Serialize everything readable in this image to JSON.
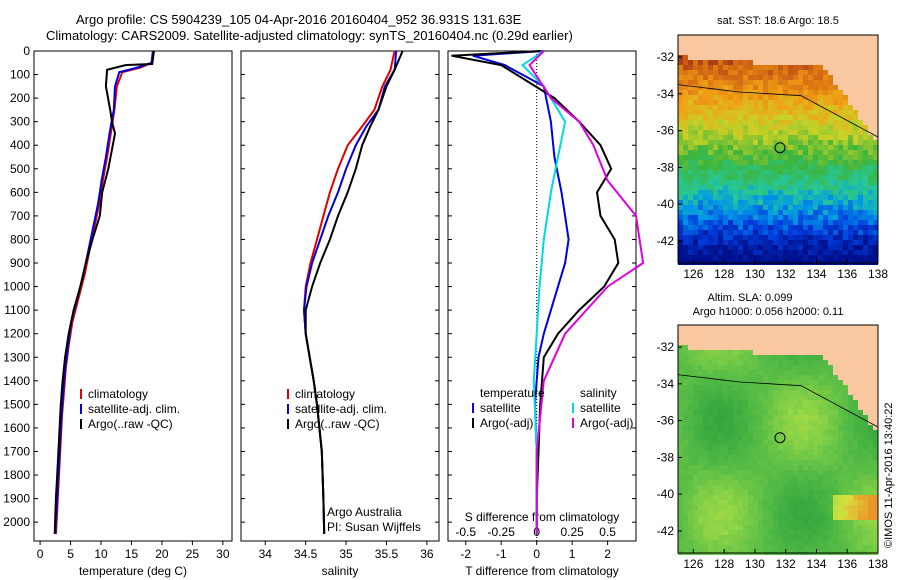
{
  "header": {
    "line1": "Argo profile: CS 5904239_105 04-Apr-2016 20160404_952 36.931S 131.63E",
    "line2": "Climatology: CARS2009. Satellite-adjusted climatology: synTS_20160404.nc (0.29d earlier)"
  },
  "colors": {
    "climatology": "#e00000",
    "satellite": "#0000e0",
    "argo": "#000000",
    "salinity_sat": "#00d8e8",
    "salinity_argo": "#e000e0"
  },
  "chart_data": [
    {
      "type": "line",
      "id": "temperature",
      "xlabel": "temperature (deg C)",
      "ylabel": "",
      "xlim": [
        -1,
        31.5
      ],
      "ylim": [
        2080,
        0
      ],
      "xticks": [
        0,
        5,
        10,
        15,
        20,
        25,
        30
      ],
      "yticks": [
        0,
        100,
        200,
        300,
        400,
        500,
        600,
        700,
        800,
        900,
        1000,
        1100,
        1200,
        1300,
        1400,
        1500,
        1600,
        1700,
        1800,
        1900,
        2000
      ],
      "legend": [
        "climatology",
        "satellite-adj. clim.",
        "Argo(..raw -QC)"
      ],
      "series": [
        {
          "name": "climatology",
          "color": "red",
          "x": [
            18.6,
            18.3,
            16.5,
            13.5,
            12.6,
            12.2,
            11.6,
            11.0,
            10.3,
            9.7,
            8.9,
            8.1,
            7.3,
            6.3,
            5.3,
            4.7,
            4.2,
            3.9,
            3.6,
            3.4,
            3.2,
            3.0,
            2.8,
            2.6
          ],
          "y": [
            0,
            50,
            70,
            90,
            150,
            250,
            350,
            450,
            550,
            650,
            750,
            850,
            950,
            1050,
            1150,
            1250,
            1350,
            1450,
            1550,
            1650,
            1750,
            1850,
            1950,
            2050
          ]
        },
        {
          "name": "satellite-adj. clim.",
          "color": "blue",
          "x": [
            18.5,
            18.3,
            16.0,
            13.0,
            12.3,
            12.1,
            11.4,
            10.8,
            10.1,
            9.5,
            8.7,
            7.9,
            7.1,
            6.1,
            5.1,
            4.6,
            4.1,
            3.8,
            3.5,
            3.3,
            3.1,
            2.9,
            2.7,
            2.5
          ],
          "y": [
            0,
            50,
            70,
            90,
            150,
            250,
            350,
            450,
            550,
            650,
            750,
            850,
            950,
            1050,
            1150,
            1250,
            1350,
            1450,
            1550,
            1650,
            1750,
            1850,
            1950,
            2050
          ]
        },
        {
          "name": "Argo(..raw -QC)",
          "color": "black",
          "x": [
            18.7,
            18.4,
            14.0,
            11.0,
            10.8,
            11.5,
            11.8,
            12.3,
            11.2,
            10.2,
            9.8,
            8.6,
            7.5,
            6.6,
            5.5,
            4.7,
            4.1,
            3.7,
            3.4,
            3.2,
            3.0,
            2.8,
            2.6,
            2.4
          ],
          "y": [
            0,
            55,
            60,
            80,
            150,
            250,
            300,
            350,
            500,
            600,
            700,
            800,
            900,
            1000,
            1100,
            1200,
            1300,
            1400,
            1500,
            1600,
            1700,
            1800,
            1900,
            2050
          ]
        }
      ]
    },
    {
      "type": "line",
      "id": "salinity",
      "xlabel": "salinity",
      "xlim": [
        33.7,
        36.15
      ],
      "ylim": [
        2080,
        0
      ],
      "xticks": [
        34,
        34.5,
        35,
        35.5,
        36
      ],
      "legend": [
        "climatology",
        "satellite-adj. clim.",
        "Argo(..raw -QC)"
      ],
      "annotation": [
        "Argo Australia",
        "PI: Susan Wijffels"
      ],
      "series": [
        {
          "name": "climatology",
          "color": "red",
          "x": [
            35.6,
            35.55,
            35.45,
            35.35,
            35.2,
            35.02,
            34.9,
            34.8,
            34.72,
            34.64,
            34.56,
            34.5,
            34.48,
            34.5,
            34.55,
            34.6,
            34.64,
            34.67,
            34.7,
            34.72,
            34.73
          ],
          "y": [
            0,
            80,
            150,
            250,
            320,
            400,
            500,
            600,
            700,
            800,
            900,
            1000,
            1100,
            1200,
            1300,
            1400,
            1500,
            1600,
            1700,
            1900,
            2050
          ]
        },
        {
          "name": "satellite-adj. clim.",
          "color": "blue",
          "x": [
            35.62,
            35.6,
            35.48,
            35.4,
            35.25,
            35.12,
            35.0,
            34.9,
            34.78,
            34.68,
            34.58,
            34.51,
            34.48,
            34.5,
            34.55,
            34.6,
            34.64,
            34.67,
            34.7,
            34.72,
            34.73
          ],
          "y": [
            0,
            80,
            150,
            250,
            320,
            400,
            500,
            600,
            700,
            800,
            900,
            1000,
            1100,
            1200,
            1300,
            1400,
            1500,
            1600,
            1700,
            1900,
            2050
          ]
        },
        {
          "name": "Argo(..raw -QC)",
          "color": "black",
          "x": [
            35.7,
            35.6,
            35.5,
            35.4,
            35.3,
            35.2,
            35.12,
            35.02,
            34.9,
            34.8,
            34.68,
            34.58,
            34.5,
            34.5,
            34.55,
            34.6,
            34.64,
            34.67,
            34.7,
            34.72,
            34.73
          ],
          "y": [
            0,
            80,
            150,
            250,
            320,
            400,
            500,
            600,
            700,
            800,
            900,
            1000,
            1100,
            1200,
            1300,
            1400,
            1500,
            1600,
            1700,
            1900,
            2050
          ]
        }
      ]
    },
    {
      "type": "line",
      "id": "difference",
      "xlabel": "T difference from climatology",
      "xlabel2": "S difference from climatology",
      "xlim": [
        -2.5,
        2.8
      ],
      "xticks": [
        -2,
        -1,
        0,
        1,
        2
      ],
      "xticks2": [
        -0.5,
        -0.25,
        0,
        0.25,
        0.5
      ],
      "ylim": [
        2080,
        0
      ],
      "legend_titles": [
        "temperature",
        "salinity"
      ],
      "legend": [
        "satellite",
        "Argo(-adj)",
        "satellite",
        "Argo(-adj)"
      ],
      "series": [
        {
          "name": "temperature satellite",
          "color": "blue",
          "x": [
            0.2,
            -1.8,
            -0.9,
            0.2,
            0.4,
            0.5,
            0.7,
            0.8,
            0.9,
            0.8,
            0.6,
            0.4,
            0.2,
            0.05,
            0.0,
            -0.05,
            0.0,
            0.0,
            0.0
          ],
          "y": [
            0,
            20,
            60,
            150,
            300,
            450,
            600,
            700,
            800,
            900,
            1000,
            1100,
            1200,
            1300,
            1400,
            1500,
            1700,
            1900,
            2050
          ]
        },
        {
          "name": "temperature Argo(-adj)",
          "color": "black",
          "x": [
            0.1,
            -2.4,
            -1.0,
            0.5,
            1.2,
            1.8,
            2.1,
            1.7,
            1.8,
            2.2,
            2.3,
            1.9,
            1.2,
            0.6,
            0.2,
            0.1,
            0.05,
            0.0,
            0.0
          ],
          "y": [
            0,
            20,
            60,
            200,
            300,
            400,
            500,
            600,
            700,
            800,
            900,
            1000,
            1100,
            1200,
            1300,
            1500,
            1700,
            1900,
            2050
          ]
        },
        {
          "name": "salinity satellite",
          "color": "cyan",
          "x": [
            0.05,
            -0.1,
            0.05,
            0.2,
            0.15,
            0.1,
            0.05,
            0.02,
            0.0,
            -0.02,
            0.0,
            0.0
          ],
          "y": [
            0,
            60,
            150,
            300,
            450,
            600,
            800,
            1000,
            1200,
            1400,
            1700,
            2050
          ]
        },
        {
          "name": "salinity Argo(-adj)",
          "color": "magenta",
          "x": [
            0.05,
            -0.05,
            0.1,
            0.3,
            0.4,
            0.5,
            0.7,
            0.75,
            0.5,
            0.2,
            0.05,
            0.0,
            0.0
          ],
          "y": [
            0,
            60,
            200,
            300,
            400,
            550,
            700,
            900,
            1000,
            1200,
            1400,
            1700,
            2050
          ]
        }
      ]
    }
  ],
  "maps": [
    {
      "id": "sst-map",
      "title": "sat. SST: 18.6 Argo: 18.5",
      "xticks": [
        126,
        128,
        130,
        132,
        134,
        136,
        138
      ],
      "yticks": [
        -32,
        -34,
        -36,
        -38,
        -40,
        -42
      ],
      "xlim": [
        125,
        138
      ],
      "ylim": [
        -43.2,
        -30.8
      ],
      "marker": {
        "lon": 131.63,
        "lat": -36.93
      }
    },
    {
      "id": "sla-map",
      "title_line1": "Altim. SLA: 0.099",
      "title_line2": "Argo h1000: 0.056 h2000: 0.11",
      "xticks": [
        126,
        128,
        130,
        132,
        134,
        136,
        138
      ],
      "yticks": [
        -32,
        -34,
        -36,
        -38,
        -40,
        -42
      ],
      "xlim": [
        125,
        138
      ],
      "ylim": [
        -43.2,
        -30.8
      ],
      "marker": {
        "lon": 131.63,
        "lat": -36.93
      }
    }
  ],
  "credit": "©IMOS 11-Apr-2016 13:40:22"
}
